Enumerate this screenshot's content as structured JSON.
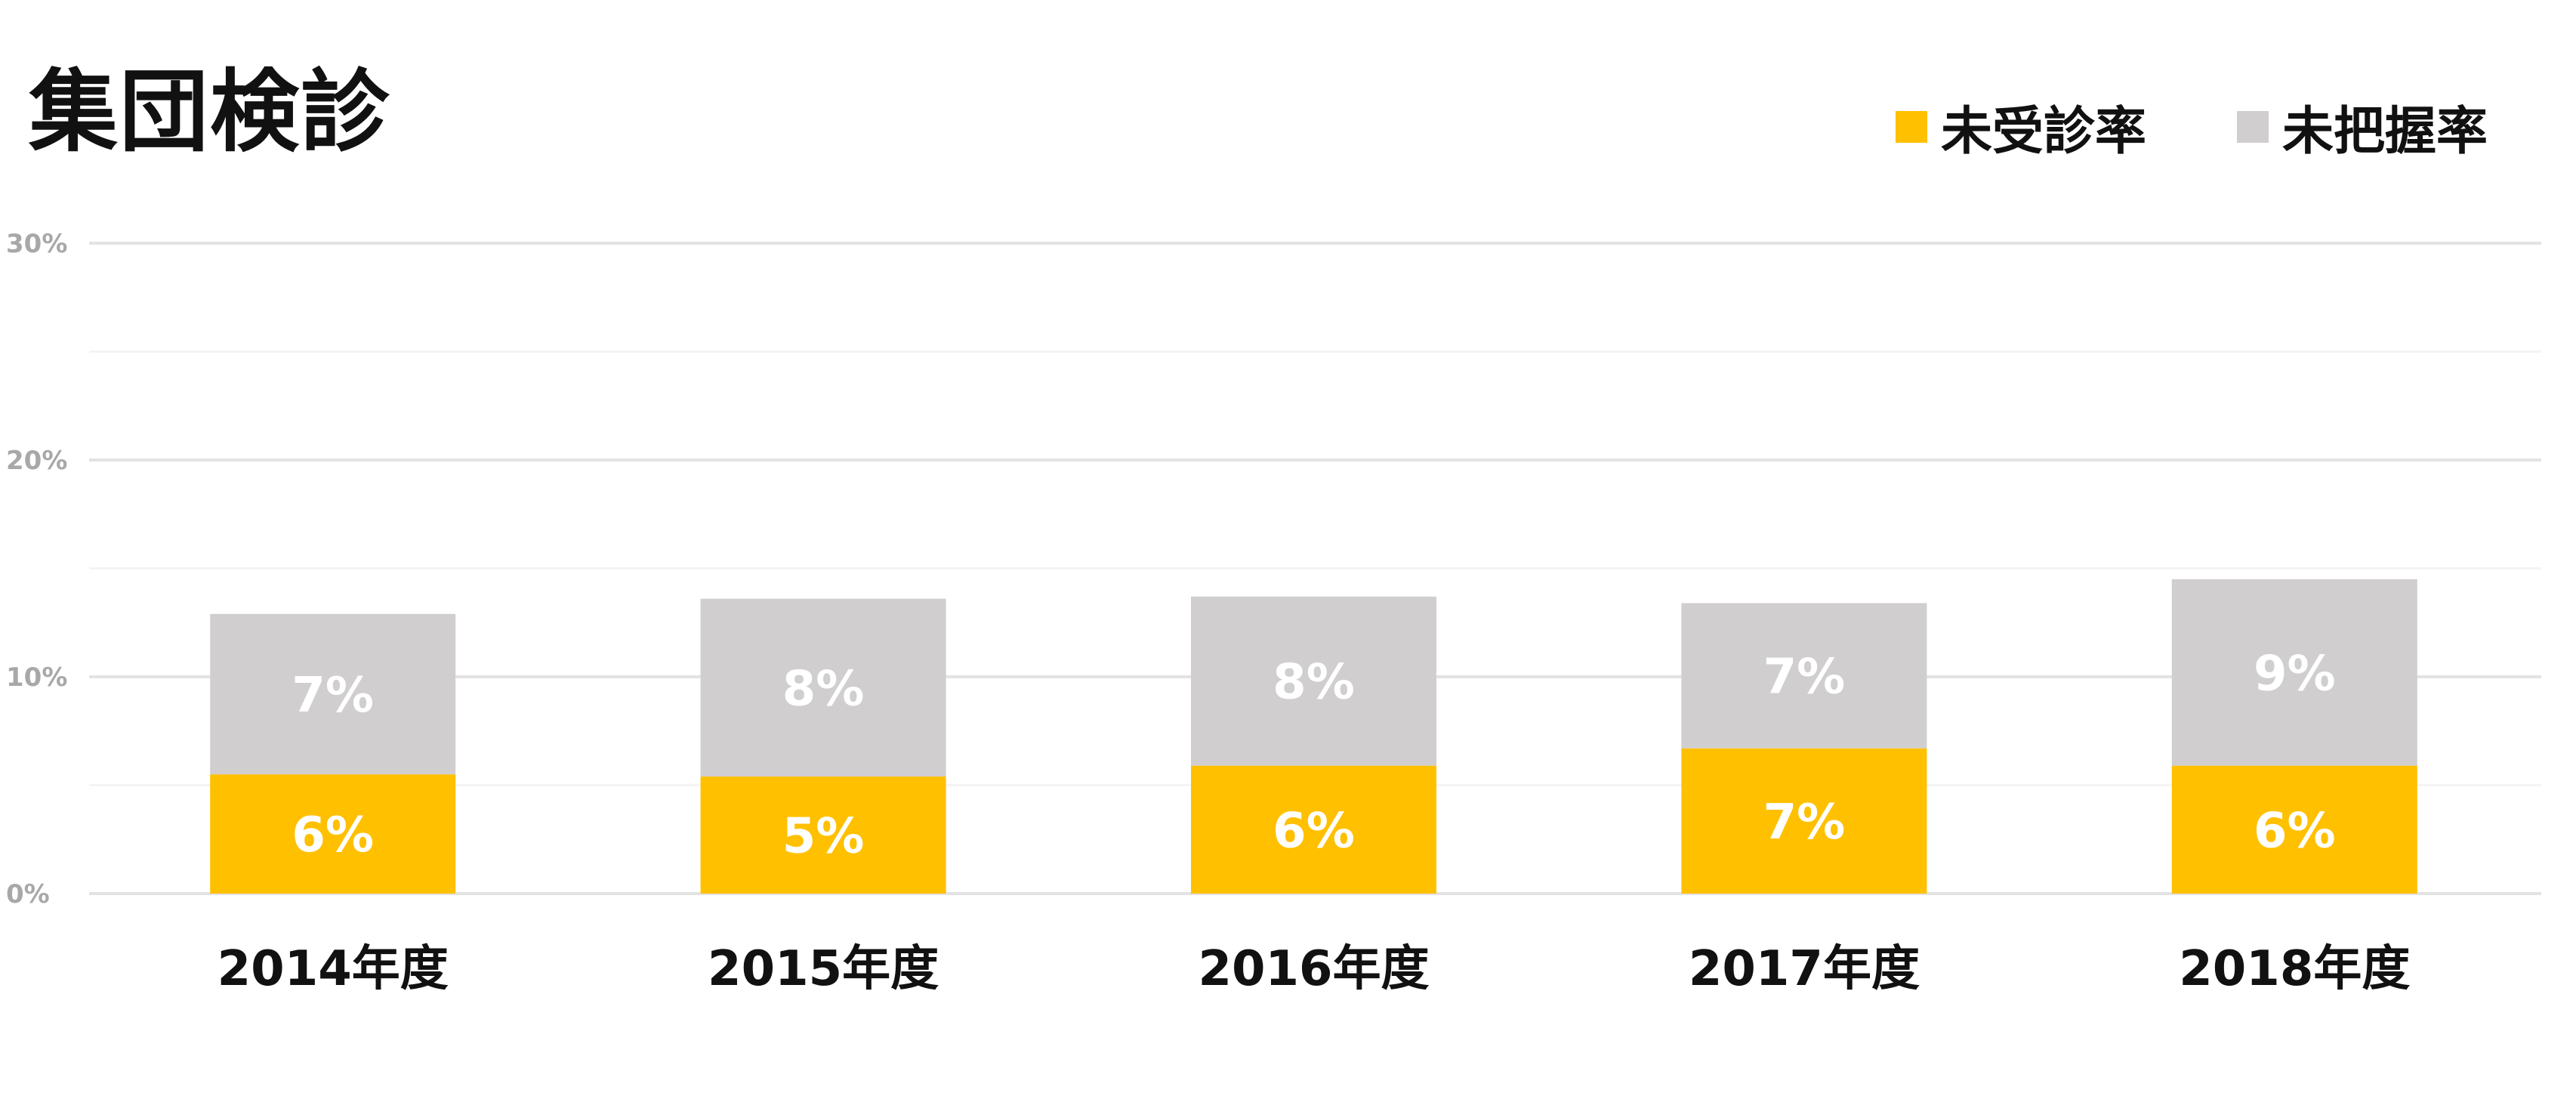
{
  "chart_data": {
    "type": "bar",
    "stacked": true,
    "title": "集団検診",
    "categories": [
      "2014年度",
      "2015年度",
      "2016年度",
      "2017年度",
      "2018年度"
    ],
    "series": [
      {
        "name": "未受診率",
        "color": "#FFC000",
        "values": [
          5.5,
          5.4,
          5.9,
          6.7,
          5.9
        ],
        "labels": [
          "6%",
          "5%",
          "6%",
          "7%",
          "6%"
        ]
      },
      {
        "name": "未把握率",
        "color": "#D0CECE",
        "values": [
          7.4,
          8.2,
          7.8,
          6.7,
          8.6
        ],
        "labels": [
          "7%",
          "8%",
          "8%",
          "7%",
          "9%"
        ]
      }
    ],
    "ylim": [
      0,
      30
    ],
    "yticks": [
      "0%",
      "10%",
      "20%",
      "30%"
    ],
    "ytick_values": [
      0,
      10,
      20,
      30
    ],
    "grid": true,
    "legend_position": "top-right"
  }
}
